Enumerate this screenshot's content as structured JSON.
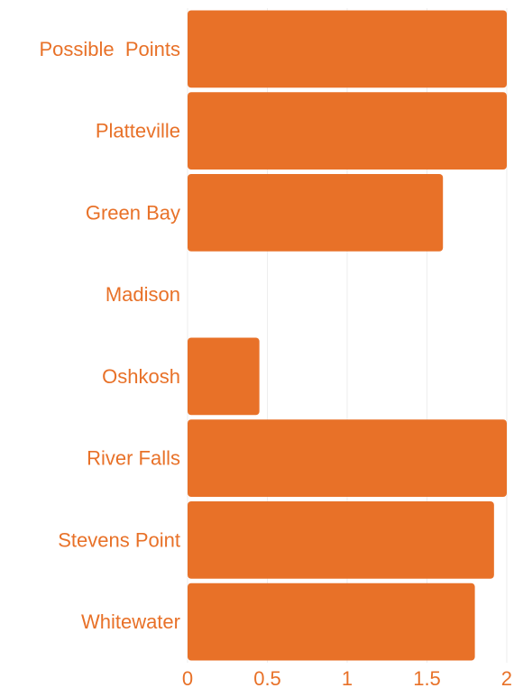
{
  "chart_data": {
    "type": "bar",
    "orientation": "horizontal",
    "categories": [
      "Possible  Points",
      "Platteville",
      "Green Bay",
      "Madison",
      "Oshkosh",
      "River Falls",
      "Stevens Point",
      "Whitewater"
    ],
    "values": [
      2,
      2,
      1.6,
      0,
      0.45,
      2,
      1.92,
      1.8
    ],
    "xlim": [
      0,
      2
    ],
    "xticks": [
      0,
      0.5,
      1,
      1.5,
      2
    ],
    "xtick_labels": [
      "0",
      "0.5",
      "1",
      "1.5",
      "2"
    ],
    "title": "",
    "xlabel": "",
    "ylabel": "",
    "grid": true,
    "legend": "none",
    "colors": {
      "bar": "#E87128",
      "text": "#E87128",
      "grid": "#EEEEEE"
    }
  }
}
